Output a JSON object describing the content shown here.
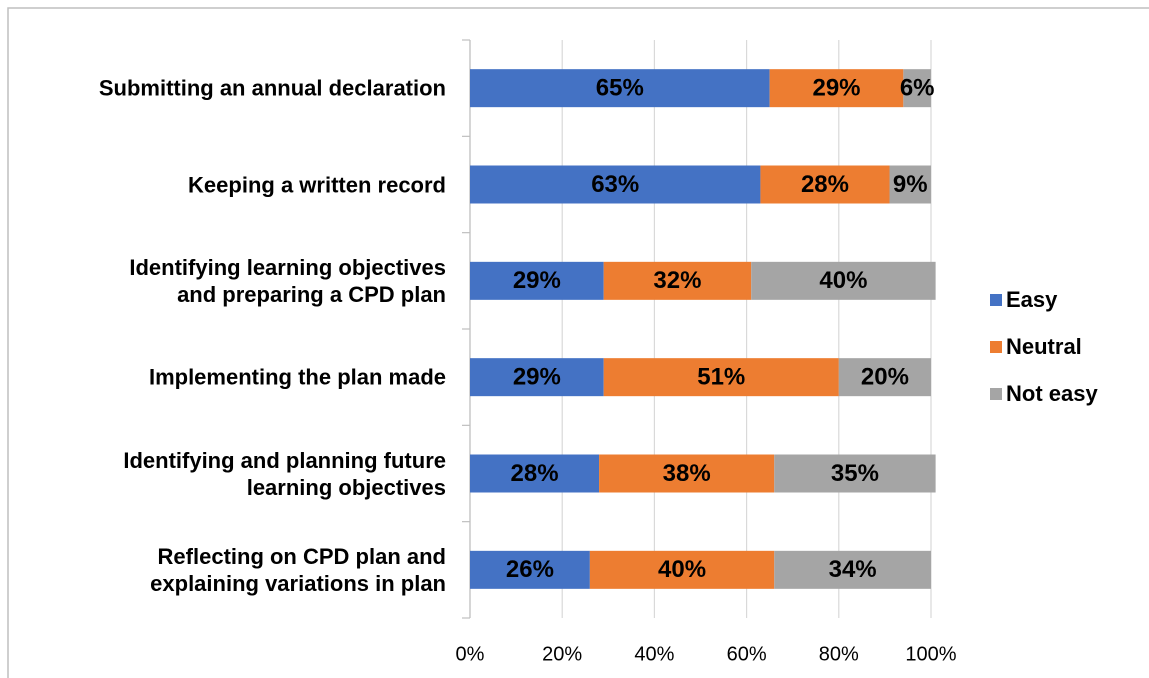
{
  "chart_data": {
    "type": "stacked_barh",
    "categories": [
      "Submitting an annual declaration",
      "Keeping a written record",
      "Identifying learning objectives\nand preparing a CPD plan",
      "Implementing the plan made",
      "Identifying and planning future\nlearning objectives",
      "Reflecting on CPD plan and\nexplaining variations in plan"
    ],
    "series": [
      {
        "name": "Easy",
        "color": "#4472c4",
        "values": [
          65,
          63,
          29,
          29,
          28,
          26
        ],
        "value_labels": [
          "65%",
          "63%",
          "29%",
          "29%",
          "28%",
          "26%"
        ]
      },
      {
        "name": "Neutral",
        "color": "#ed7d31",
        "values": [
          29,
          28,
          32,
          51,
          38,
          40
        ],
        "value_labels": [
          "29%",
          "28%",
          "32%",
          "51%",
          "38%",
          "40%"
        ]
      },
      {
        "name": "Not easy",
        "color": "#a5a5a5",
        "values": [
          6,
          9,
          40,
          20,
          35,
          34
        ],
        "value_labels": [
          "6%",
          "9%",
          "40%",
          "20%",
          "35%",
          "34%"
        ]
      }
    ],
    "xlim": [
      0,
      100
    ],
    "xticks": [
      {
        "value": 0,
        "label": "0%"
      },
      {
        "value": 20,
        "label": "20%"
      },
      {
        "value": 40,
        "label": "40%"
      },
      {
        "value": 60,
        "label": "60%"
      },
      {
        "value": 80,
        "label": "80%"
      },
      {
        "value": 100,
        "label": "100%"
      }
    ],
    "grid": true,
    "legend": "right"
  }
}
